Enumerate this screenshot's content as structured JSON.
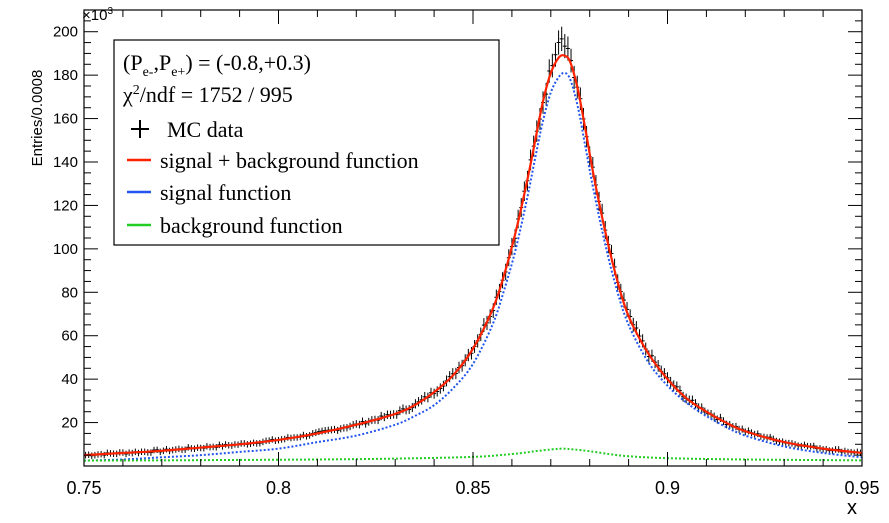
{
  "chart_data": {
    "type": "line",
    "xlabel": "x",
    "ylabel": "Entries/0.0008",
    "yscale_label": "×10",
    "yscale_exp": "3",
    "xlim": [
      0.75,
      0.95
    ],
    "ylim": [
      0,
      210
    ],
    "x_ticks": [
      0.75,
      0.8,
      0.85,
      0.9,
      0.95
    ],
    "x_tick_labels": [
      "0.75",
      "0.8",
      "0.85",
      "0.9",
      "0.95"
    ],
    "y_ticks": [
      20,
      40,
      60,
      80,
      100,
      120,
      140,
      160,
      180,
      200
    ],
    "y_tick_labels": [
      "20",
      "40",
      "60",
      "80",
      "100",
      "120",
      "140",
      "160",
      "180",
      "200"
    ],
    "legend": {
      "position": "top-left",
      "lines": [
        {
          "key": "pol",
          "text": "(Pₑ₋,Pₑ₊) = (-0.8,+0.3)"
        },
        {
          "key": "chi2",
          "text": "χ²/ndf = 1752 / 995"
        }
      ],
      "entries": [
        {
          "key": "mc",
          "label": "MC data",
          "color": "#000000",
          "marker": "cross"
        },
        {
          "key": "sb",
          "label": "signal + background function",
          "color": "#ff2200",
          "marker": "line"
        },
        {
          "key": "sig",
          "label": "signal function",
          "color": "#2255ee",
          "marker": "line"
        },
        {
          "key": "bkg",
          "label": "background function",
          "color": "#22cc22",
          "marker": "line"
        }
      ]
    },
    "model": {
      "peak_position": 0.8725,
      "signal_peak": 181,
      "fit_peak": 189,
      "data_peak": 199,
      "background_level": [
        2.5,
        8
      ]
    },
    "series": [
      {
        "name": "signal + background function",
        "color": "#ff2200",
        "style": "solid",
        "x": [
          0.75,
          0.76,
          0.77,
          0.78,
          0.79,
          0.8,
          0.81,
          0.82,
          0.83,
          0.835,
          0.84,
          0.845,
          0.85,
          0.855,
          0.858,
          0.861,
          0.864,
          0.866,
          0.868,
          0.87,
          0.872,
          0.8735,
          0.875,
          0.877,
          0.879,
          0.881,
          0.884,
          0.887,
          0.89,
          0.895,
          0.9,
          0.905,
          0.91,
          0.915,
          0.92,
          0.93,
          0.94,
          0.95
        ],
        "y": [
          5,
          6,
          7,
          8.5,
          10,
          12,
          15,
          19,
          24,
          28,
          34,
          42,
          54,
          72,
          88,
          108,
          132,
          150,
          168,
          181,
          188,
          189,
          186,
          173,
          154,
          134,
          108,
          86,
          69,
          52,
          40,
          31,
          25,
          20,
          16,
          11,
          8,
          6
        ]
      },
      {
        "name": "signal function",
        "color": "#2255ee",
        "style": "dotted",
        "x": [
          0.75,
          0.76,
          0.77,
          0.78,
          0.79,
          0.8,
          0.81,
          0.82,
          0.83,
          0.835,
          0.84,
          0.845,
          0.85,
          0.855,
          0.858,
          0.861,
          0.864,
          0.866,
          0.868,
          0.87,
          0.872,
          0.8735,
          0.875,
          0.877,
          0.879,
          0.881,
          0.884,
          0.887,
          0.89,
          0.895,
          0.9,
          0.905,
          0.91,
          0.915,
          0.92,
          0.93,
          0.94,
          0.95
        ],
        "y": [
          2.5,
          3,
          4,
          5,
          6.5,
          8,
          11,
          14,
          19,
          23,
          28,
          36,
          47,
          65,
          81,
          100,
          124,
          142,
          159,
          172,
          179,
          181,
          178,
          165,
          146,
          127,
          102,
          81,
          65,
          48,
          37,
          29,
          23,
          18,
          14,
          9,
          6,
          4
        ]
      },
      {
        "name": "background function",
        "color": "#22cc22",
        "style": "dotted",
        "x": [
          0.75,
          0.77,
          0.79,
          0.81,
          0.83,
          0.85,
          0.86,
          0.866,
          0.87,
          0.873,
          0.876,
          0.88,
          0.885,
          0.89,
          0.9,
          0.92,
          0.95
        ],
        "y": [
          2.5,
          2.6,
          2.8,
          3.0,
          3.4,
          4.2,
          5.5,
          6.8,
          7.6,
          8.0,
          7.6,
          6.8,
          5.5,
          4.5,
          3.6,
          3.0,
          2.6
        ]
      }
    ]
  }
}
